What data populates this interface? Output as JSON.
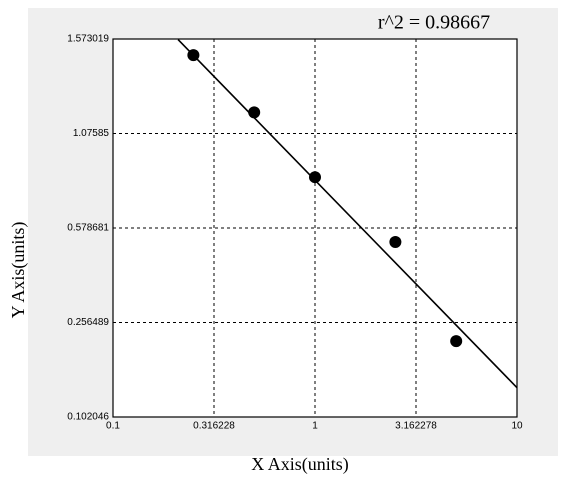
{
  "chart_data": {
    "type": "scatter",
    "annotation": "r^2 = 0.98667",
    "x_label": "X Axis(units)",
    "y_label": "Y Axis(units)",
    "x": [
      0.25,
      0.5,
      1,
      2.5,
      5
    ],
    "values": [
      1.488,
      1.187,
      0.846,
      0.531,
      0.226
    ],
    "color": "#000000",
    "fit_line": {
      "x": [
        0.21,
        10
      ],
      "y": [
        1.57,
        0.15
      ]
    },
    "xscale": "log",
    "xlim": [
      0.1,
      10
    ],
    "xticks": [
      0.1,
      0.316228,
      1,
      3.162278,
      10
    ],
    "ylim": [
      0.102046,
      1.573019
    ],
    "yticks": [
      0.102046,
      0.256489,
      0.578681,
      1.07585,
      1.573019
    ],
    "grid": true
  }
}
